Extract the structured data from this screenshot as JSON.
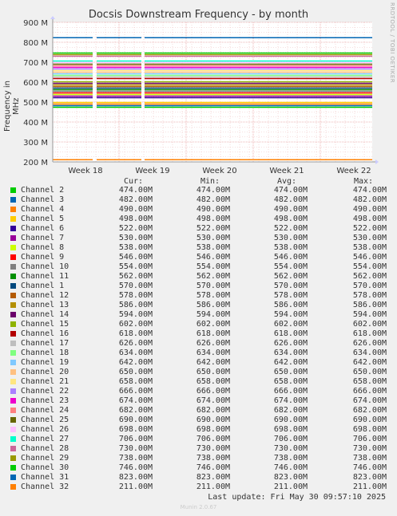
{
  "chart_data": {
    "type": "line",
    "title": "Docsis Downstream Frequency - by month",
    "ylabel": "Frequency in MHz",
    "side_label": "RRDTOOL / TOBI OETIKER",
    "y_ticks": [
      "200 M",
      "300 M",
      "400 M",
      "500 M",
      "600 M",
      "700 M",
      "800 M",
      "900 M"
    ],
    "y_tick_values": [
      200,
      300,
      400,
      500,
      600,
      700,
      800,
      900
    ],
    "ylim": [
      200,
      900
    ],
    "x_ticks": [
      "Week 18",
      "Week 19",
      "Week 20",
      "Week 21",
      "Week 22"
    ],
    "grid": true,
    "legend_headers": {
      "cur": "Cur:",
      "min": "Min:",
      "avg": "Avg:",
      "max": "Max:"
    },
    "series": [
      {
        "name": "Channel 2",
        "color": "#00cc00",
        "cur": "474.00M",
        "min": "474.00M",
        "avg": "474.00M",
        "max": "474.00M",
        "value": 474
      },
      {
        "name": "Channel 3",
        "color": "#0066b3",
        "cur": "482.00M",
        "min": "482.00M",
        "avg": "482.00M",
        "max": "482.00M",
        "value": 482
      },
      {
        "name": "Channel 4",
        "color": "#ff8000",
        "cur": "490.00M",
        "min": "490.00M",
        "avg": "490.00M",
        "max": "490.00M",
        "value": 490
      },
      {
        "name": "Channel 5",
        "color": "#ffcc00",
        "cur": "498.00M",
        "min": "498.00M",
        "avg": "498.00M",
        "max": "498.00M",
        "value": 498
      },
      {
        "name": "Channel 6",
        "color": "#330099",
        "cur": "522.00M",
        "min": "522.00M",
        "avg": "522.00M",
        "max": "522.00M",
        "value": 522
      },
      {
        "name": "Channel 7",
        "color": "#990099",
        "cur": "530.00M",
        "min": "530.00M",
        "avg": "530.00M",
        "max": "530.00M",
        "value": 530
      },
      {
        "name": "Channel 8",
        "color": "#ccff00",
        "cur": "538.00M",
        "min": "538.00M",
        "avg": "538.00M",
        "max": "538.00M",
        "value": 538
      },
      {
        "name": "Channel 9",
        "color": "#ff0000",
        "cur": "546.00M",
        "min": "546.00M",
        "avg": "546.00M",
        "max": "546.00M",
        "value": 546
      },
      {
        "name": "Channel 10",
        "color": "#808080",
        "cur": "554.00M",
        "min": "554.00M",
        "avg": "554.00M",
        "max": "554.00M",
        "value": 554
      },
      {
        "name": "Channel 11",
        "color": "#008f00",
        "cur": "562.00M",
        "min": "562.00M",
        "avg": "562.00M",
        "max": "562.00M",
        "value": 562
      },
      {
        "name": "Channel 1",
        "color": "#00487d",
        "cur": "570.00M",
        "min": "570.00M",
        "avg": "570.00M",
        "max": "570.00M",
        "value": 570
      },
      {
        "name": "Channel 12",
        "color": "#b35a00",
        "cur": "578.00M",
        "min": "578.00M",
        "avg": "578.00M",
        "max": "578.00M",
        "value": 578
      },
      {
        "name": "Channel 13",
        "color": "#b38f00",
        "cur": "586.00M",
        "min": "586.00M",
        "avg": "586.00M",
        "max": "586.00M",
        "value": 586
      },
      {
        "name": "Channel 14",
        "color": "#6b006b",
        "cur": "594.00M",
        "min": "594.00M",
        "avg": "594.00M",
        "max": "594.00M",
        "value": 594
      },
      {
        "name": "Channel 15",
        "color": "#8fb300",
        "cur": "602.00M",
        "min": "602.00M",
        "avg": "602.00M",
        "max": "602.00M",
        "value": 602
      },
      {
        "name": "Channel 16",
        "color": "#b30000",
        "cur": "618.00M",
        "min": "618.00M",
        "avg": "618.00M",
        "max": "618.00M",
        "value": 618
      },
      {
        "name": "Channel 17",
        "color": "#bebebe",
        "cur": "626.00M",
        "min": "626.00M",
        "avg": "626.00M",
        "max": "626.00M",
        "value": 626
      },
      {
        "name": "Channel 18",
        "color": "#80ff80",
        "cur": "634.00M",
        "min": "634.00M",
        "avg": "634.00M",
        "max": "634.00M",
        "value": 634
      },
      {
        "name": "Channel 19",
        "color": "#80c9ff",
        "cur": "642.00M",
        "min": "642.00M",
        "avg": "642.00M",
        "max": "642.00M",
        "value": 642
      },
      {
        "name": "Channel 20",
        "color": "#ffc080",
        "cur": "650.00M",
        "min": "650.00M",
        "avg": "650.00M",
        "max": "650.00M",
        "value": 650
      },
      {
        "name": "Channel 21",
        "color": "#ffe680",
        "cur": "658.00M",
        "min": "658.00M",
        "avg": "658.00M",
        "max": "658.00M",
        "value": 658
      },
      {
        "name": "Channel 22",
        "color": "#aa80ff",
        "cur": "666.00M",
        "min": "666.00M",
        "avg": "666.00M",
        "max": "666.00M",
        "value": 666
      },
      {
        "name": "Channel 23",
        "color": "#ee00cc",
        "cur": "674.00M",
        "min": "674.00M",
        "avg": "674.00M",
        "max": "674.00M",
        "value": 674
      },
      {
        "name": "Channel 24",
        "color": "#ff8080",
        "cur": "682.00M",
        "min": "682.00M",
        "avg": "682.00M",
        "max": "682.00M",
        "value": 682
      },
      {
        "name": "Channel 25",
        "color": "#666600",
        "cur": "690.00M",
        "min": "690.00M",
        "avg": "690.00M",
        "max": "690.00M",
        "value": 690
      },
      {
        "name": "Channel 26",
        "color": "#ffbfff",
        "cur": "698.00M",
        "min": "698.00M",
        "avg": "698.00M",
        "max": "698.00M",
        "value": 698
      },
      {
        "name": "Channel 27",
        "color": "#00ffcc",
        "cur": "706.00M",
        "min": "706.00M",
        "avg": "706.00M",
        "max": "706.00M",
        "value": 706
      },
      {
        "name": "Channel 28",
        "color": "#cc6699",
        "cur": "730.00M",
        "min": "730.00M",
        "avg": "730.00M",
        "max": "730.00M",
        "value": 730
      },
      {
        "name": "Channel 29",
        "color": "#999900",
        "cur": "738.00M",
        "min": "738.00M",
        "avg": "738.00M",
        "max": "738.00M",
        "value": 738
      },
      {
        "name": "Channel 30",
        "color": "#00cc00",
        "cur": "746.00M",
        "min": "746.00M",
        "avg": "746.00M",
        "max": "746.00M",
        "value": 746
      },
      {
        "name": "Channel 31",
        "color": "#0066b3",
        "cur": "823.00M",
        "min": "823.00M",
        "avg": "823.00M",
        "max": "823.00M",
        "value": 823
      },
      {
        "name": "Channel 32",
        "color": "#ff8000",
        "cur": "211.00M",
        "min": "211.00M",
        "avg": "211.00M",
        "max": "211.00M",
        "value": 211
      }
    ]
  },
  "footer": {
    "last_update": "Last update: Fri May 30 09:57:10 2025",
    "version": "Munin 2.0.67"
  }
}
